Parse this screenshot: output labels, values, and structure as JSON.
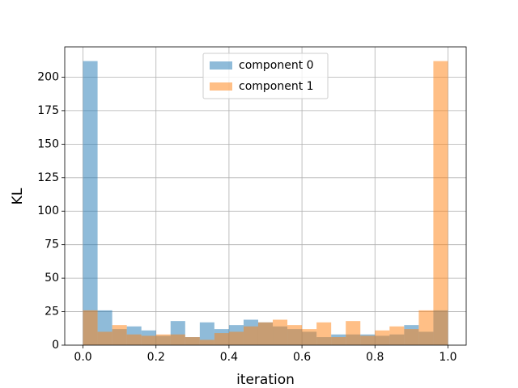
{
  "chart_data": {
    "type": "histogram",
    "xlabel": "iteration",
    "ylabel": "KL",
    "bins": [
      0,
      0.04,
      0.08,
      0.12,
      0.16,
      0.2,
      0.24,
      0.28,
      0.32,
      0.36,
      0.4,
      0.44,
      0.48,
      0.52,
      0.56,
      0.6,
      0.64,
      0.68,
      0.72,
      0.76,
      0.8,
      0.84,
      0.88,
      0.92,
      0.96,
      1
    ],
    "series": [
      {
        "name": "component 0",
        "color": "#1f77b4",
        "values": [
          212,
          26,
          12,
          14,
          11,
          7,
          18,
          6,
          17,
          12,
          15,
          19,
          17,
          14,
          12,
          10,
          6,
          8,
          8,
          8,
          7,
          8,
          15,
          10,
          26
        ]
      },
      {
        "name": "component 1",
        "color": "#ff7f0e",
        "values": [
          26,
          10,
          15,
          8,
          7,
          8,
          8,
          6,
          4,
          9,
          10,
          14,
          17,
          19,
          15,
          12,
          17,
          6,
          18,
          7,
          11,
          14,
          12,
          26,
          212
        ]
      }
    ],
    "xlim": [
      -0.05,
      1.05
    ],
    "xticks": [
      {
        "value": 0,
        "label": "0.0"
      },
      0.2,
      0.4,
      0.6,
      0.8,
      {
        "value": 1,
        "label": "1.0"
      }
    ],
    "ylim": [
      0,
      222.6
    ],
    "yticks": [
      0,
      25,
      50,
      75,
      100,
      125,
      150,
      175,
      200
    ],
    "grid": true,
    "legend": "upper center",
    "alpha": 0.5
  }
}
